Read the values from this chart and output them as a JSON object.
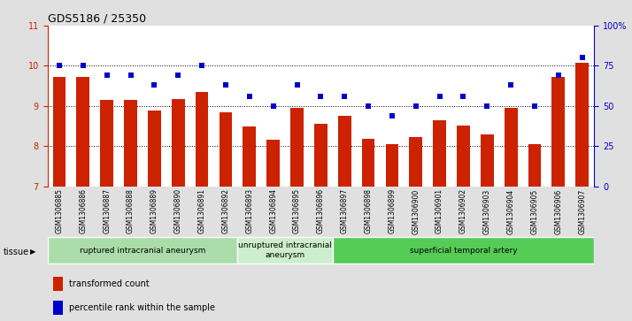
{
  "title": "GDS5186 / 25350",
  "samples": [
    "GSM1306885",
    "GSM1306886",
    "GSM1306887",
    "GSM1306888",
    "GSM1306889",
    "GSM1306890",
    "GSM1306891",
    "GSM1306892",
    "GSM1306893",
    "GSM1306894",
    "GSM1306895",
    "GSM1306896",
    "GSM1306897",
    "GSM1306898",
    "GSM1306899",
    "GSM1306900",
    "GSM1306901",
    "GSM1306902",
    "GSM1306903",
    "GSM1306904",
    "GSM1306905",
    "GSM1306906",
    "GSM1306907"
  ],
  "bar_values": [
    9.72,
    9.72,
    9.15,
    9.15,
    8.88,
    9.18,
    9.35,
    8.85,
    8.48,
    8.15,
    8.95,
    8.55,
    8.75,
    8.18,
    8.05,
    8.22,
    8.65,
    8.52,
    8.3,
    8.95,
    8.05,
    9.72,
    10.08
  ],
  "dot_values": [
    75,
    75,
    69,
    69,
    63,
    69,
    75,
    63,
    56,
    50,
    63,
    56,
    56,
    50,
    44,
    50,
    56,
    56,
    50,
    63,
    50,
    69,
    80
  ],
  "bar_color": "#cc2200",
  "dot_color": "#0000cc",
  "ylim_left": [
    7,
    11
  ],
  "ylim_right": [
    0,
    100
  ],
  "yticks_left": [
    7,
    8,
    9,
    10,
    11
  ],
  "yticks_right": [
    0,
    25,
    50,
    75,
    100
  ],
  "ytick_labels_right": [
    "0",
    "25",
    "50",
    "75",
    "100%"
  ],
  "groups": [
    {
      "label": "ruptured intracranial aneurysm",
      "start": 0,
      "end": 8
    },
    {
      "label": "unruptured intracranial\naneurysm",
      "start": 8,
      "end": 12
    },
    {
      "label": "superficial temporal artery",
      "start": 12,
      "end": 23
    }
  ],
  "group_colors": [
    "#aaddaa",
    "#cceecc",
    "#55cc55"
  ],
  "tissue_label": "tissue",
  "legend_bar_label": "transformed count",
  "legend_dot_label": "percentile rank within the sample",
  "background_color": "#e0e0e0",
  "plot_bg_color": "#ffffff"
}
